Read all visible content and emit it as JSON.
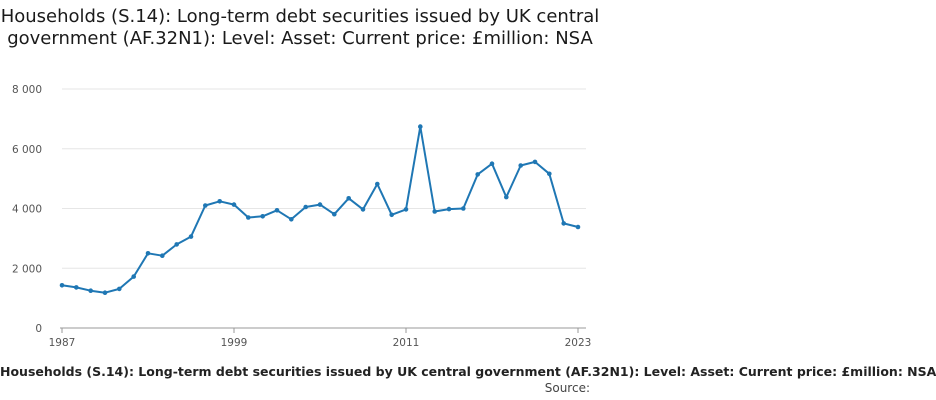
{
  "title": "Households (S.14): Long-term debt securities issued by UK central government (AF.32N1): Level: Asset: Current price: £million: NSA",
  "source_label": "Source:",
  "chart_data": {
    "type": "line",
    "title": "Households (S.14): Long-term debt securities issued by UK central government (AF.32N1): Level: Asset: Current price: £million: NSA",
    "xlabel": "Households (S.14): Long-term debt securities issued by UK central government (AF.32N1): Level: Asset: Current price: £million: NSA",
    "ylabel": "",
    "x": [
      1987,
      1988,
      1989,
      1990,
      1991,
      1992,
      1993,
      1994,
      1995,
      1996,
      1997,
      1998,
      1999,
      2000,
      2001,
      2002,
      2003,
      2004,
      2005,
      2006,
      2007,
      2008,
      2009,
      2010,
      2011,
      2012,
      2013,
      2014,
      2015,
      2016,
      2017,
      2018,
      2019,
      2020,
      2021,
      2022,
      2023
    ],
    "series": [
      {
        "values": [
          1430,
          1360,
          1250,
          1180,
          1310,
          1720,
          2500,
          2420,
          2800,
          3060,
          4100,
          4240,
          4130,
          3700,
          3740,
          3940,
          3640,
          4050,
          4130,
          3810,
          4340,
          3970,
          4820,
          3790,
          3970,
          6740,
          3900,
          3980,
          4000,
          5140,
          5500,
          4380,
          5440,
          5560,
          5160,
          3500,
          3380
        ]
      }
    ],
    "xticks": [
      1987,
      1999,
      2011,
      2023
    ],
    "xtick_labels": [
      "1987",
      "1999",
      "2011",
      "2023"
    ],
    "yticks": [
      0,
      2000,
      4000,
      6000,
      8000
    ],
    "ytick_labels": [
      "0",
      "2 000",
      "4 000",
      "6 000",
      "8 000"
    ],
    "xlim": [
      1987,
      2023
    ],
    "ylim": [
      0,
      8000
    ],
    "grid": true,
    "legend": "none",
    "colors": {
      "line": "#1f77b4",
      "grid": "#e6e6e6"
    }
  }
}
